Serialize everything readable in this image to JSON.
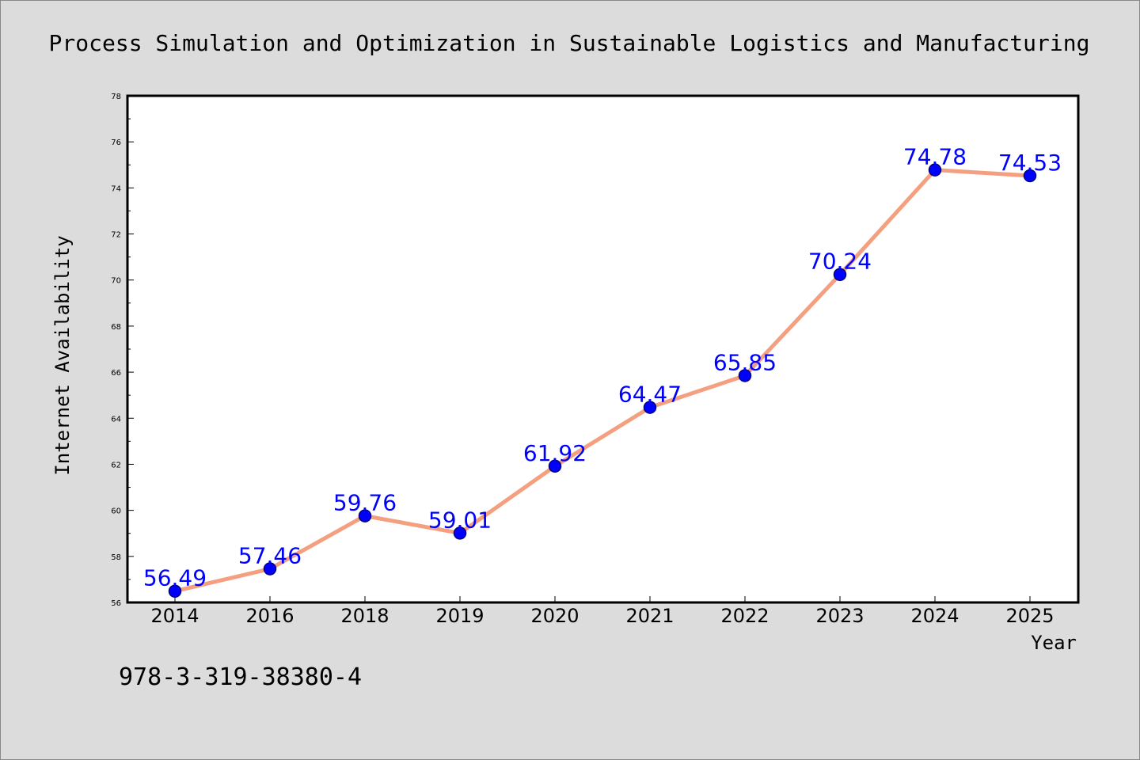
{
  "chart_data": {
    "type": "line",
    "title": "Process Simulation and Optimization in Sustainable Logistics and Manufacturing",
    "xlabel": "Year",
    "ylabel": "Internet Availability",
    "categories": [
      "2014",
      "2016",
      "2018",
      "2019",
      "2020",
      "2021",
      "2022",
      "2023",
      "2024",
      "2025"
    ],
    "series": [
      {
        "values": [
          56.49,
          57.46,
          59.76,
          59.01,
          61.92,
          64.47,
          65.85,
          70.24,
          74.78,
          74.53
        ],
        "data_labels": [
          "56.49",
          "57.46",
          "59.76",
          "59.01",
          "61.92",
          "64.47",
          "65.85",
          "70.24",
          "74.78",
          "74.53"
        ]
      }
    ],
    "ylim": [
      56,
      78
    ],
    "yticks": [
      "56",
      "58",
      "60",
      "62",
      "64",
      "66",
      "68",
      "70",
      "72",
      "74",
      "76",
      "78"
    ],
    "grid": false,
    "legend": "none",
    "annotation": "978-3-319-38380-4",
    "colors": {
      "background": "#dcdcdc",
      "plot_area": "#ffffff",
      "line": "#f4a080",
      "marker": "#0000ff",
      "marker_edge": "#000080",
      "data_label": "#0000ff",
      "text": "#000000"
    }
  }
}
